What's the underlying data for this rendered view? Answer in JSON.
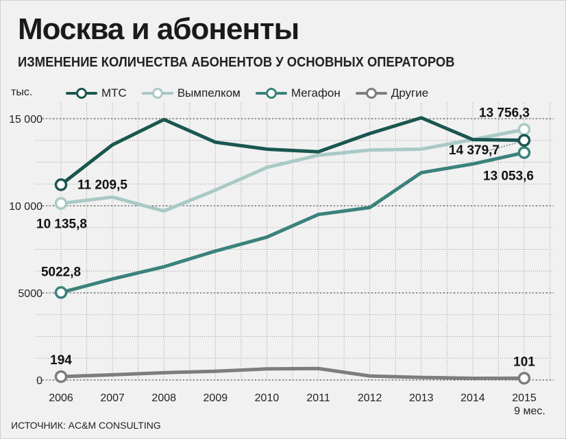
{
  "title": "Москва и абоненты",
  "subtitle": "ИЗМЕНЕНИЕ КОЛИЧЕСТВА АБОНЕНТОВ У ОСНОВНЫХ ОПЕРАТОРОВ",
  "source": "ИСТОЧНИК: AC&M CONSULTING",
  "chart_data": {
    "type": "line",
    "ylabel": "тыс.",
    "x": [
      "2006",
      "2007",
      "2008",
      "2009",
      "2010",
      "2011",
      "2012",
      "2013",
      "2014",
      "2015"
    ],
    "x_sublabel": {
      "2015": "9 мес."
    },
    "ylim": [
      0,
      16000
    ],
    "yticks": [
      0,
      5000,
      10000,
      15000
    ],
    "ytick_labels": [
      "0",
      "5000",
      "10 000",
      "15 000"
    ],
    "grid": true,
    "legend_position": "top",
    "series": [
      {
        "name": "МТС",
        "color": "#1b5650",
        "values": [
          11209.5,
          13500,
          14950,
          13650,
          13250,
          13100,
          14150,
          15050,
          13800,
          13756.3
        ]
      },
      {
        "name": "Вымпелком",
        "color": "#a9c9c5",
        "values": [
          10135.8,
          10500,
          9700,
          10900,
          12200,
          12900,
          13200,
          13250,
          13800,
          14379.7
        ]
      },
      {
        "name": "Мегафон",
        "color": "#3a827b",
        "values": [
          5022.8,
          5800,
          6500,
          7400,
          8200,
          9500,
          9900,
          11900,
          12400,
          13053.6
        ]
      },
      {
        "name": "Другие",
        "color": "#7d7d7d",
        "values": [
          194,
          300,
          420,
          500,
          640,
          660,
          230,
          150,
          100,
          101
        ]
      }
    ],
    "annotations": [
      {
        "series": 0,
        "index": 0,
        "text": "11 209,5"
      },
      {
        "series": 0,
        "index": 9,
        "text": "13 756,3"
      },
      {
        "series": 1,
        "index": 0,
        "text": "10 135,8"
      },
      {
        "series": 1,
        "index": 9,
        "text": "14 379,7"
      },
      {
        "series": 2,
        "index": 0,
        "text": "5022,8"
      },
      {
        "series": 2,
        "index": 9,
        "text": "13 053,6"
      },
      {
        "series": 3,
        "index": 0,
        "text": "194"
      },
      {
        "series": 3,
        "index": 9,
        "text": "101"
      }
    ]
  }
}
